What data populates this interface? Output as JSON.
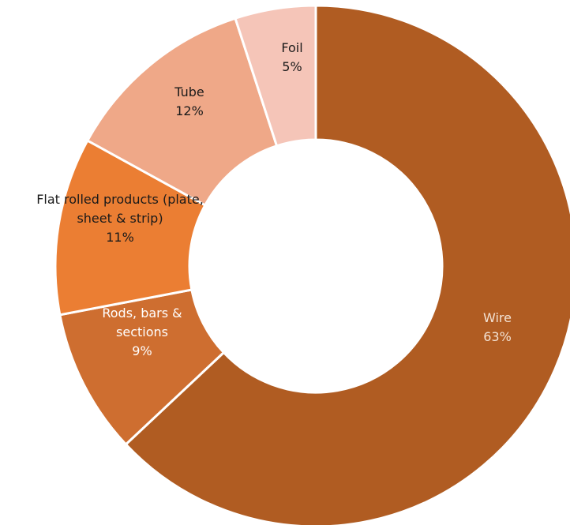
{
  "chart_data": {
    "type": "pie",
    "donut": true,
    "title": "",
    "slices": [
      {
        "label_lines": [
          "Wire"
        ],
        "value": 63,
        "value_label": "63%",
        "color": "#B05C22",
        "text_color": "#F3E2D4"
      },
      {
        "label_lines": [
          "Rods, bars &",
          "sections"
        ],
        "value": 9,
        "value_label": "9%",
        "color": "#CE6E30",
        "text_color": "#FFFFFF"
      },
      {
        "label_lines": [
          "Flat rolled products (plate,",
          "sheet & strip)"
        ],
        "value": 11,
        "value_label": "11%",
        "color": "#EB7E33",
        "text_color": "#1A1A1A"
      },
      {
        "label_lines": [
          "Tube"
        ],
        "value": 12,
        "value_label": "12%",
        "color": "#EFA888",
        "text_color": "#1A1A1A"
      },
      {
        "label_lines": [
          "Foil"
        ],
        "value": 5,
        "value_label": "5%",
        "color": "#F5C5B8",
        "text_color": "#1A1A1A"
      }
    ]
  }
}
